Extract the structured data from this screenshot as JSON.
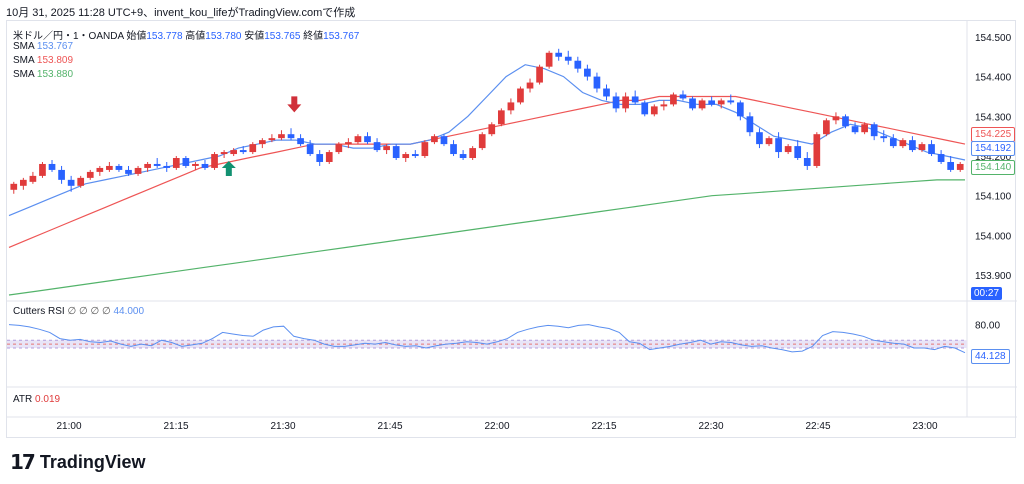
{
  "header": {
    "caption": "10月 31, 2025 11:28 UTC+9、invent_kou_lifeがTradingView.comで作成"
  },
  "legend": {
    "symbol": "米ドル／円・1・OANDA",
    "open_label": "始値",
    "open": "153.778",
    "high_label": "高値",
    "high": "153.780",
    "low_label": "安値",
    "low": "153.765",
    "close_label": "終値",
    "close": "153.767",
    "sma": [
      {
        "label": "SMA",
        "value": "153.767",
        "color": "#5b8ff0"
      },
      {
        "label": "SMA",
        "value": "153.809",
        "color": "#ee5555"
      },
      {
        "label": "SMA",
        "value": "153.880",
        "color": "#53b36a"
      }
    ]
  },
  "rsi_legend": {
    "label": "Cutters RSI",
    "icons": [
      "∅",
      "∅",
      "∅",
      "∅"
    ],
    "value": "44.000",
    "color": "#5b8ff0"
  },
  "atr_legend": {
    "label": "ATR",
    "value": "0.019",
    "color": "#e03b3b"
  },
  "price_axis": {
    "ticks": [
      "154.500",
      "154.400",
      "154.300",
      "154.200",
      "154.100",
      "154.000",
      "153.900"
    ],
    "badges": {
      "sma_red": "154.225",
      "sma_blue": "154.192",
      "sma_green": "154.140",
      "countdown": "00:27"
    }
  },
  "rsi_axis": {
    "ticks": [
      "80.00"
    ],
    "badge": "44.128"
  },
  "time_axis": {
    "ticks": [
      "21:00",
      "21:15",
      "21:30",
      "21:45",
      "22:00",
      "22:15",
      "22:30",
      "22:45",
      "23:00"
    ]
  },
  "footer": {
    "brand": "TradingView"
  },
  "colors": {
    "up": "#e03b3b",
    "down": "#2962ff",
    "sma_fast": "#5b8ff0",
    "sma_mid": "#ee5555",
    "sma_slow": "#53b36a",
    "buy_arrow": "#129171",
    "sell_arrow": "#d0303a"
  },
  "chart_data": {
    "type": "candlestick",
    "timeframe": "1 minute",
    "x_range": [
      "20:53",
      "23:07"
    ],
    "ylim": [
      153.84,
      154.54
    ],
    "y_ticks": [
      153.9,
      154.0,
      154.1,
      154.2,
      154.3,
      154.4,
      154.5
    ],
    "grid": false,
    "candles": [
      [
        154.115,
        154.135,
        154.105,
        154.13
      ],
      [
        154.125,
        154.145,
        154.115,
        154.14
      ],
      [
        154.135,
        154.16,
        154.13,
        154.15
      ],
      [
        154.15,
        154.185,
        154.145,
        154.18
      ],
      [
        154.18,
        154.19,
        154.16,
        154.165
      ],
      [
        154.165,
        154.175,
        154.13,
        154.14
      ],
      [
        154.14,
        154.15,
        154.11,
        154.125
      ],
      [
        154.125,
        154.15,
        154.12,
        154.145
      ],
      [
        154.145,
        154.165,
        154.14,
        154.16
      ],
      [
        154.16,
        154.175,
        154.15,
        154.17
      ],
      [
        154.165,
        154.185,
        154.16,
        154.175
      ],
      [
        154.175,
        154.18,
        154.16,
        154.165
      ],
      [
        154.165,
        154.175,
        154.15,
        154.155
      ],
      [
        154.155,
        154.175,
        154.15,
        154.17
      ],
      [
        154.17,
        154.185,
        154.16,
        154.18
      ],
      [
        154.18,
        154.195,
        154.17,
        154.175
      ],
      [
        154.175,
        154.185,
        154.16,
        154.17
      ],
      [
        154.17,
        154.2,
        154.165,
        154.195
      ],
      [
        154.195,
        154.2,
        154.17,
        154.175
      ],
      [
        154.175,
        154.185,
        154.165,
        154.18
      ],
      [
        154.18,
        154.19,
        154.165,
        154.17
      ],
      [
        154.17,
        154.21,
        154.165,
        154.205
      ],
      [
        154.205,
        154.215,
        154.195,
        154.21
      ],
      [
        154.205,
        154.22,
        154.2,
        154.215
      ],
      [
        154.215,
        154.225,
        154.205,
        154.21
      ],
      [
        154.21,
        154.235,
        154.205,
        154.23
      ],
      [
        154.23,
        154.245,
        154.22,
        154.24
      ],
      [
        154.24,
        154.255,
        154.235,
        154.245
      ],
      [
        154.245,
        154.265,
        154.24,
        154.255
      ],
      [
        154.255,
        154.27,
        154.24,
        154.245
      ],
      [
        154.245,
        154.255,
        154.225,
        154.23
      ],
      [
        154.23,
        154.24,
        154.2,
        154.205
      ],
      [
        154.205,
        154.215,
        154.175,
        154.185
      ],
      [
        154.185,
        154.215,
        154.18,
        154.21
      ],
      [
        154.21,
        154.235,
        154.205,
        154.23
      ],
      [
        154.23,
        154.245,
        154.22,
        154.235
      ],
      [
        154.235,
        154.255,
        154.23,
        154.25
      ],
      [
        154.25,
        154.26,
        154.23,
        154.235
      ],
      [
        154.235,
        154.245,
        154.21,
        154.215
      ],
      [
        154.215,
        154.23,
        154.205,
        154.225
      ],
      [
        154.225,
        154.23,
        154.19,
        154.195
      ],
      [
        154.195,
        154.21,
        154.185,
        154.205
      ],
      [
        154.205,
        154.215,
        154.195,
        154.2
      ],
      [
        154.2,
        154.24,
        154.195,
        154.235
      ],
      [
        154.235,
        154.255,
        154.23,
        154.25
      ],
      [
        154.25,
        154.255,
        154.225,
        154.23
      ],
      [
        154.23,
        154.24,
        154.2,
        154.205
      ],
      [
        154.205,
        154.215,
        154.19,
        154.195
      ],
      [
        154.195,
        154.225,
        154.19,
        154.22
      ],
      [
        154.22,
        154.26,
        154.215,
        154.255
      ],
      [
        154.255,
        154.285,
        154.25,
        154.28
      ],
      [
        154.28,
        154.32,
        154.275,
        154.315
      ],
      [
        154.315,
        154.345,
        154.305,
        154.335
      ],
      [
        154.335,
        154.375,
        154.33,
        154.37
      ],
      [
        154.37,
        154.395,
        154.36,
        154.385
      ],
      [
        154.385,
        154.43,
        154.38,
        154.425
      ],
      [
        154.425,
        154.465,
        154.42,
        154.46
      ],
      [
        154.46,
        154.47,
        154.44,
        154.45
      ],
      [
        154.45,
        154.465,
        154.43,
        154.44
      ],
      [
        154.44,
        154.45,
        154.41,
        154.42
      ],
      [
        154.42,
        154.43,
        154.39,
        154.4
      ],
      [
        154.4,
        154.41,
        154.36,
        154.37
      ],
      [
        154.37,
        154.38,
        154.34,
        154.35
      ],
      [
        154.35,
        154.36,
        154.31,
        154.32
      ],
      [
        154.32,
        154.36,
        154.31,
        154.35
      ],
      [
        154.35,
        154.365,
        154.33,
        154.335
      ],
      [
        154.335,
        154.34,
        154.3,
        154.305
      ],
      [
        154.305,
        154.33,
        154.3,
        154.325
      ],
      [
        154.325,
        154.34,
        154.315,
        154.33
      ],
      [
        154.33,
        154.36,
        154.325,
        154.355
      ],
      [
        154.355,
        154.365,
        154.34,
        154.345
      ],
      [
        154.345,
        154.35,
        154.315,
        154.32
      ],
      [
        154.32,
        154.345,
        154.315,
        154.34
      ],
      [
        154.34,
        154.35,
        154.325,
        154.33
      ],
      [
        154.33,
        154.345,
        154.32,
        154.34
      ],
      [
        154.34,
        154.355,
        154.33,
        154.335
      ],
      [
        154.335,
        154.34,
        154.29,
        154.3
      ],
      [
        154.3,
        154.31,
        154.25,
        154.26
      ],
      [
        154.26,
        154.27,
        154.22,
        154.23
      ],
      [
        154.23,
        154.25,
        154.225,
        154.245
      ],
      [
        154.245,
        154.26,
        154.195,
        154.21
      ],
      [
        154.21,
        154.23,
        154.205,
        154.225
      ],
      [
        154.225,
        154.24,
        154.19,
        154.195
      ],
      [
        154.195,
        154.21,
        154.165,
        154.175
      ],
      [
        154.175,
        154.26,
        154.17,
        154.255
      ],
      [
        154.255,
        154.295,
        154.25,
        154.29
      ],
      [
        154.29,
        154.31,
        154.28,
        154.3
      ],
      [
        154.3,
        154.305,
        154.27,
        154.275
      ],
      [
        154.275,
        154.285,
        154.255,
        154.26
      ],
      [
        154.26,
        154.285,
        154.255,
        154.28
      ],
      [
        154.28,
        154.285,
        154.24,
        154.25
      ],
      [
        154.25,
        154.265,
        154.235,
        154.245
      ],
      [
        154.245,
        154.255,
        154.22,
        154.225
      ],
      [
        154.225,
        154.245,
        154.22,
        154.24
      ],
      [
        154.24,
        154.25,
        154.21,
        154.215
      ],
      [
        154.215,
        154.235,
        154.21,
        154.23
      ],
      [
        154.23,
        154.24,
        154.2,
        154.205
      ],
      [
        154.205,
        154.215,
        154.18,
        154.185
      ],
      [
        154.185,
        154.2,
        154.16,
        154.165
      ],
      [
        154.165,
        154.185,
        154.16,
        154.18
      ]
    ],
    "series": [
      {
        "name": "SMA",
        "color": "#5b8ff0",
        "values": [
          154.05,
          154.07,
          154.09,
          154.11,
          154.13,
          154.14,
          154.15,
          154.16,
          154.17,
          154.18,
          154.19,
          154.2,
          154.22,
          154.23,
          154.24,
          154.24,
          154.23,
          154.23,
          154.22,
          154.22,
          154.23,
          154.23,
          154.24,
          154.26,
          154.3,
          154.35,
          154.4,
          154.43,
          154.42,
          154.4,
          154.36,
          154.34,
          154.33,
          154.33,
          154.34,
          154.34,
          154.33,
          154.33,
          154.31,
          154.28,
          154.25,
          154.24,
          154.23,
          154.26,
          154.28,
          154.27,
          154.25,
          154.23,
          154.21,
          154.2,
          154.19
        ]
      },
      {
        "name": "SMA",
        "color": "#ee5555",
        "values": [
          153.97,
          153.99,
          154.01,
          154.03,
          154.05,
          154.07,
          154.09,
          154.11,
          154.13,
          154.15,
          154.17,
          154.18,
          154.19,
          154.2,
          154.21,
          154.22,
          154.23,
          154.23,
          154.23,
          154.23,
          154.23,
          154.23,
          154.24,
          154.25,
          154.26,
          154.27,
          154.28,
          154.29,
          154.3,
          154.31,
          154.32,
          154.33,
          154.34,
          154.34,
          154.35,
          154.35,
          154.35,
          154.35,
          154.35,
          154.34,
          154.33,
          154.32,
          154.31,
          154.3,
          154.29,
          154.28,
          154.27,
          154.26,
          154.25,
          154.24,
          154.23
        ]
      },
      {
        "name": "SMA",
        "color": "#53b36a",
        "values": [
          153.85,
          153.86,
          153.87,
          153.88,
          153.89,
          153.9,
          153.91,
          153.92,
          153.93,
          153.94,
          153.95,
          153.96,
          153.97,
          153.98,
          153.99,
          154.0,
          154.01,
          154.02,
          154.03,
          154.04,
          154.05,
          154.06,
          154.07,
          154.08,
          154.09,
          154.1,
          154.105,
          154.11,
          154.115,
          154.12,
          154.125,
          154.13,
          154.135,
          154.14,
          154.14
        ]
      }
    ],
    "rsi": {
      "name": "Cutters RSI",
      "ylim": [
        0,
        100
      ],
      "ticks": [
        80
      ],
      "values": [
        80,
        79,
        77,
        74,
        70,
        62,
        60,
        61,
        58,
        57,
        59,
        55,
        52,
        55,
        53,
        60,
        57,
        52,
        54,
        56,
        62,
        70,
        68,
        66,
        65,
        73,
        77,
        78,
        65,
        62,
        60,
        55,
        52,
        52,
        54,
        56,
        55,
        57,
        54,
        52,
        53,
        50,
        53,
        55,
        56,
        58,
        57,
        55,
        58,
        62,
        70,
        74,
        77,
        79,
        78,
        76,
        79,
        80,
        77,
        75,
        70,
        58,
        56,
        48,
        50,
        52,
        55,
        57,
        60,
        55,
        58,
        57,
        54,
        52,
        53,
        50,
        48,
        45,
        46,
        52,
        66,
        71,
        70,
        68,
        65,
        60,
        58,
        56,
        55,
        50,
        50,
        48,
        52,
        50,
        44
      ]
    }
  }
}
